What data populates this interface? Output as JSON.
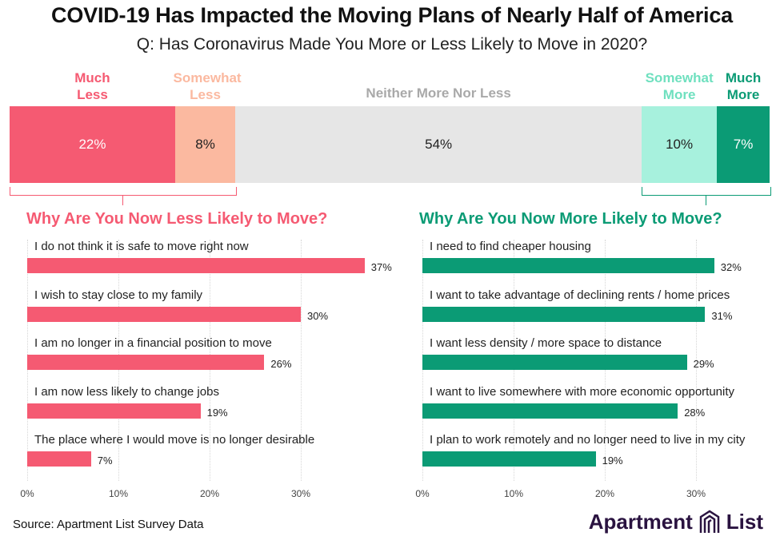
{
  "title": "COVID-19 Has Impacted the Moving Plans of Nearly Half of America",
  "subtitle": "Q: Has Coronavirus Made You More or Less Likely to Move in 2020?",
  "chart_data": [
    {
      "type": "bar",
      "orientation": "horizontal-stacked",
      "series": [
        {
          "name_lines": [
            "Much",
            "Less"
          ],
          "value": 22,
          "label": "22%",
          "color": "#f55a72"
        },
        {
          "name_lines": [
            "Somewhat",
            "Less"
          ],
          "value": 8,
          "label": "8%",
          "color": "#fbb9a0"
        },
        {
          "name_lines": [
            "Neither More Nor Less"
          ],
          "value": 54,
          "label": "54%",
          "color": "#e6e6e6"
        },
        {
          "name_lines": [
            "Somewhat",
            "More"
          ],
          "value": 10,
          "label": "10%",
          "color": "#a7f1dd"
        },
        {
          "name_lines": [
            "Much",
            "More"
          ],
          "value": 7,
          "label": "7%",
          "color": "#0b9b75"
        }
      ]
    },
    {
      "type": "bar",
      "orientation": "horizontal",
      "title": "Why Are You Now Less Likely to Move?",
      "color": "#f55a72",
      "categories": [
        "I do not think it is safe to move right now",
        "I wish to stay close to my family",
        "I am no longer in a financial position to move",
        "I am now less likely to change jobs",
        "The place where I would move is no longer desirable"
      ],
      "values": [
        37,
        30,
        26,
        19,
        7
      ],
      "value_labels": [
        "37%",
        "30%",
        "26%",
        "19%",
        "7%"
      ],
      "xlim": [
        0,
        40
      ],
      "ticks": [
        0,
        10,
        20,
        30
      ],
      "tick_labels": [
        "0%",
        "10%",
        "20%",
        "30%"
      ]
    },
    {
      "type": "bar",
      "orientation": "horizontal",
      "title": "Why Are You Now More Likely to Move?",
      "color": "#0b9b75",
      "categories": [
        "I need to find cheaper housing",
        "I want to take advantage of declining rents / home prices",
        "I want less density / more space to distance",
        "I want to live somewhere with more economic opportunity",
        "I plan to work remotely and no longer need to live in my city"
      ],
      "values": [
        32,
        31,
        29,
        28,
        19
      ],
      "value_labels": [
        "32%",
        "31%",
        "29%",
        "28%",
        "19%"
      ],
      "xlim": [
        0,
        40
      ],
      "ticks": [
        0,
        10,
        20,
        30
      ],
      "tick_labels": [
        "0%",
        "10%",
        "20%",
        "30%"
      ]
    }
  ],
  "footer": {
    "source": "Source: Apartment List Survey Data",
    "logo_left": "Apartment",
    "logo_right": "List",
    "logo_color": "#2a1340"
  }
}
